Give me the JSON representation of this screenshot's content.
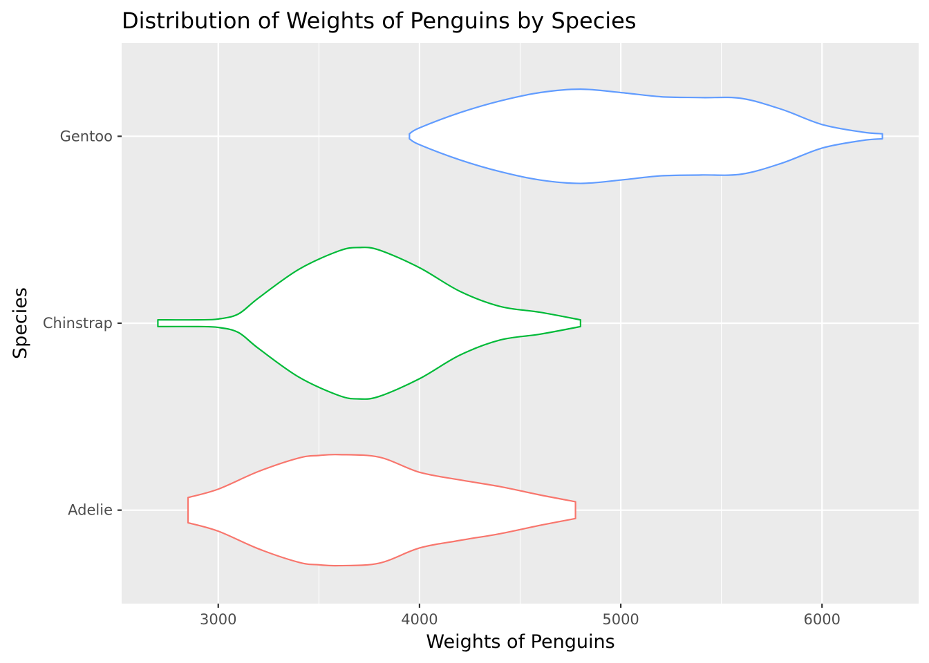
{
  "chart_data": {
    "type": "violin",
    "orientation": "horizontal",
    "title": "Distribution of Weights of Penguins by Species",
    "xlabel": "Weights of Penguins",
    "ylabel": "Species",
    "xlim": [
      2520,
      6480
    ],
    "x_ticks": [
      3000,
      4000,
      5000,
      6000
    ],
    "x_tick_labels": [
      "3000",
      "4000",
      "5000",
      "6000"
    ],
    "categories": [
      "Adelie",
      "Chinstrap",
      "Gentoo"
    ],
    "grid": true,
    "legend": "none",
    "series": [
      {
        "category": "Adelie",
        "color": "#F8766D",
        "profile": [
          [
            2850,
            0.15
          ],
          [
            3000,
            0.25
          ],
          [
            3200,
            0.46
          ],
          [
            3400,
            0.62
          ],
          [
            3500,
            0.65
          ],
          [
            3600,
            0.66
          ],
          [
            3800,
            0.63
          ],
          [
            4000,
            0.45
          ],
          [
            4200,
            0.36
          ],
          [
            4400,
            0.28
          ],
          [
            4600,
            0.18
          ],
          [
            4775,
            0.1
          ]
        ]
      },
      {
        "category": "Chinstrap",
        "color": "#00BA38",
        "profile": [
          [
            2700,
            0.04
          ],
          [
            2900,
            0.04
          ],
          [
            3000,
            0.05
          ],
          [
            3100,
            0.11
          ],
          [
            3200,
            0.3
          ],
          [
            3400,
            0.64
          ],
          [
            3600,
            0.86
          ],
          [
            3700,
            0.9
          ],
          [
            3800,
            0.87
          ],
          [
            4000,
            0.66
          ],
          [
            4200,
            0.38
          ],
          [
            4400,
            0.2
          ],
          [
            4600,
            0.13
          ],
          [
            4800,
            0.04
          ]
        ]
      },
      {
        "category": "Gentoo",
        "color": "#619CFF",
        "profile": [
          [
            3950,
            0.03
          ],
          [
            4000,
            0.1
          ],
          [
            4200,
            0.28
          ],
          [
            4400,
            0.42
          ],
          [
            4600,
            0.52
          ],
          [
            4800,
            0.56
          ],
          [
            5000,
            0.52
          ],
          [
            5200,
            0.47
          ],
          [
            5400,
            0.46
          ],
          [
            5600,
            0.45
          ],
          [
            5800,
            0.32
          ],
          [
            6000,
            0.14
          ],
          [
            6200,
            0.05
          ],
          [
            6300,
            0.03
          ]
        ]
      }
    ]
  }
}
